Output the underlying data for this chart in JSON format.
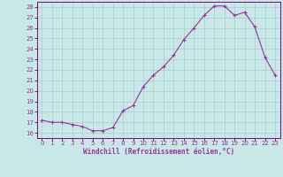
{
  "x": [
    0,
    1,
    2,
    3,
    4,
    5,
    6,
    7,
    8,
    9,
    10,
    11,
    12,
    13,
    14,
    15,
    16,
    17,
    18,
    19,
    20,
    21,
    22,
    23
  ],
  "y": [
    17.2,
    17.0,
    17.0,
    16.8,
    16.6,
    16.2,
    16.2,
    16.5,
    18.1,
    18.6,
    20.4,
    21.5,
    22.3,
    23.4,
    24.9,
    26.0,
    27.2,
    28.1,
    28.1,
    27.2,
    27.5,
    26.1,
    23.2,
    21.5
  ],
  "line_color": "#993399",
  "marker": "+",
  "bg_color": "#c8e8e8",
  "grid_color": "#aacccc",
  "xlabel": "Windchill (Refroidissement éolien,°C)",
  "xlabel_color": "#993399",
  "ylim_min": 15.5,
  "ylim_max": 28.5,
  "xlim_min": -0.5,
  "xlim_max": 23.5,
  "yticks": [
    16,
    17,
    18,
    19,
    20,
    21,
    22,
    23,
    24,
    25,
    26,
    27,
    28
  ],
  "xticks": [
    0,
    1,
    2,
    3,
    4,
    5,
    6,
    7,
    8,
    9,
    10,
    11,
    12,
    13,
    14,
    15,
    16,
    17,
    18,
    19,
    20,
    21,
    22,
    23
  ],
  "tick_fontsize": 5,
  "xlabel_fontsize": 5.5,
  "spine_color": "#800080",
  "line_width": 0.8,
  "marker_size": 3,
  "marker_edge_width": 0.8
}
